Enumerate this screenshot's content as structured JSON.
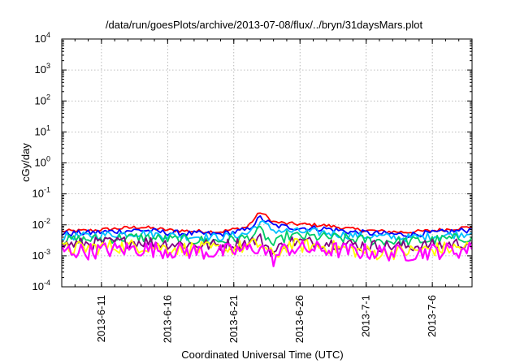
{
  "chart_data": {
    "type": "line",
    "title": "/data/run/goesPlots/archive/2013-07-08/flux/../bryn/31daysMars.plot",
    "xlabel": "Coordinated Universal Time (UTC)",
    "ylabel": "cGy/day",
    "y_scale": "log",
    "ylim": [
      0.0001,
      10000
    ],
    "y_ticks": [
      {
        "base": "10",
        "exp": "-4"
      },
      {
        "base": "10",
        "exp": "-3"
      },
      {
        "base": "10",
        "exp": "-2"
      },
      {
        "base": "10",
        "exp": "-1"
      },
      {
        "base": "10",
        "exp": "0"
      },
      {
        "base": "10",
        "exp": "1"
      },
      {
        "base": "10",
        "exp": "2"
      },
      {
        "base": "10",
        "exp": "3"
      },
      {
        "base": "10",
        "exp": "4"
      }
    ],
    "xlim": [
      "2013-06-08",
      "2013-07-09"
    ],
    "x_ticks": [
      "2013-6-11",
      "2013-6-16",
      "2013-6-21",
      "2013-6-26",
      "2013-7-1",
      "2013-7-6"
    ],
    "grid": true,
    "x": [
      "2013-06-08",
      "2013-06-10",
      "2013-06-12",
      "2013-06-14",
      "2013-06-16",
      "2013-06-18",
      "2013-06-20",
      "2013-06-22",
      "2013-06-23",
      "2013-06-24",
      "2013-06-25",
      "2013-06-26",
      "2013-06-28",
      "2013-06-30",
      "2013-07-02",
      "2013-07-04",
      "2013-07-06",
      "2013-07-08",
      "2013-07-09"
    ],
    "series": [
      {
        "color": "#ff0000",
        "values": [
          0.0062,
          0.0065,
          0.0075,
          0.0085,
          0.0068,
          0.0062,
          0.006,
          0.0085,
          0.026,
          0.0125,
          0.011,
          0.0105,
          0.0095,
          0.0072,
          0.0062,
          0.0058,
          0.0065,
          0.0078,
          0.0085
        ]
      },
      {
        "color": "#0000ff",
        "values": [
          0.0052,
          0.0055,
          0.0062,
          0.0068,
          0.0056,
          0.0052,
          0.005,
          0.0068,
          0.017,
          0.0095,
          0.0085,
          0.008,
          0.0075,
          0.0058,
          0.0052,
          0.0048,
          0.0054,
          0.0064,
          0.007
        ]
      },
      {
        "color": "#00bfff",
        "values": [
          0.0042,
          0.0044,
          0.005,
          0.0054,
          0.0045,
          0.0042,
          0.004,
          0.0052,
          0.012,
          0.0068,
          0.0062,
          0.006,
          0.0056,
          0.0045,
          0.0042,
          0.0038,
          0.0043,
          0.005,
          0.0055
        ]
      },
      {
        "color": "#00cc66",
        "values": [
          0.0032,
          0.0034,
          0.0037,
          0.004,
          0.0034,
          0.0032,
          0.003,
          0.0038,
          0.0065,
          0.0022,
          0.0045,
          0.0042,
          0.004,
          0.0034,
          0.0031,
          0.0029,
          0.0032,
          0.0037,
          0.004
        ]
      },
      {
        "color": "#800080",
        "values": [
          0.0023,
          0.0025,
          0.0027,
          0.0029,
          0.0025,
          0.0023,
          0.0022,
          0.0027,
          0.0035,
          0.0012,
          0.003,
          0.0028,
          0.0027,
          0.0023,
          0.0021,
          0.002,
          0.0022,
          0.0025,
          0.0027
        ]
      },
      {
        "color": "#ffff00",
        "values": [
          0.0017,
          0.0018,
          0.002,
          0.0021,
          0.0018,
          0.0017,
          0.0016,
          0.002,
          0.0024,
          0.0009,
          0.0022,
          0.0021,
          0.002,
          0.0015,
          0.0012,
          0.0014,
          0.0016,
          0.0018,
          0.002
        ]
      },
      {
        "color": "#ff00ff",
        "values": [
          0.0015,
          0.0014,
          0.0016,
          0.0017,
          0.0015,
          0.0014,
          0.0013,
          0.0016,
          0.002,
          0.0008,
          0.0018,
          0.0017,
          0.0016,
          0.0014,
          0.0013,
          0.0012,
          0.0014,
          0.0015,
          0.0016
        ]
      }
    ]
  }
}
